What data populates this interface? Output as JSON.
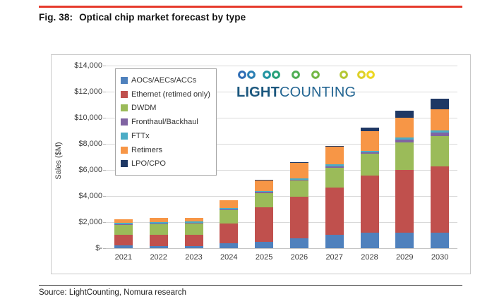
{
  "figure": {
    "label": "Fig. 38:",
    "title": "Optical chip market forecast by type"
  },
  "source": "Source: LightCounting, Nomura research",
  "logo": {
    "light": "LIGHT",
    "counting": "COUNTING"
  },
  "colors": {
    "accent_rule": "#e63a2c",
    "gridline": "#d9d9d9"
  },
  "chart_data": {
    "type": "bar",
    "stacked": true,
    "ylabel": "Sales ($M)",
    "ylim": [
      0,
      14000
    ],
    "ytick_labels": [
      "$-",
      "$2,000",
      "$4,000",
      "$6,000",
      "$8,000",
      "$10,000",
      "$12,000",
      "$14,000"
    ],
    "grid": true,
    "legend_position": "upper-left",
    "categories": [
      "2021",
      "2022",
      "2023",
      "2024",
      "2025",
      "2026",
      "2027",
      "2028",
      "2029",
      "2030"
    ],
    "series": [
      {
        "name": "AOCs/AECs/ACCs",
        "color": "#4F81BD",
        "values": [
          200,
          160,
          150,
          375,
          480,
          750,
          1020,
          1180,
          1180,
          1180
        ]
      },
      {
        "name": "Ethernet (retimed only)",
        "color": "#C0504D",
        "values": [
          850,
          860,
          900,
          1500,
          2680,
          3200,
          3640,
          4400,
          4820,
          5090
        ]
      },
      {
        "name": "DWDM",
        "color": "#9BBB59",
        "values": [
          750,
          800,
          850,
          1020,
          1070,
          1230,
          1500,
          1660,
          2090,
          2300
        ]
      },
      {
        "name": "Fronthaul/Backhaul",
        "color": "#8064A2",
        "values": [
          50,
          50,
          50,
          100,
          80,
          80,
          130,
          110,
          210,
          270
        ]
      },
      {
        "name": "FTTx",
        "color": "#4BACC6",
        "values": [
          100,
          110,
          100,
          110,
          80,
          80,
          140,
          100,
          210,
          210
        ]
      },
      {
        "name": "Retimers",
        "color": "#F79646",
        "values": [
          250,
          320,
          300,
          590,
          800,
          1180,
          1340,
          1500,
          1500,
          1600
        ]
      },
      {
        "name": "LPO/CPO",
        "color": "#1F3864",
        "values": [
          0,
          0,
          0,
          0,
          30,
          80,
          60,
          320,
          540,
          800
        ]
      }
    ],
    "totals": [
      2200,
      2300,
      2350,
      3695,
      5220,
      6600,
      7830,
      9270,
      10550,
      11450
    ]
  }
}
